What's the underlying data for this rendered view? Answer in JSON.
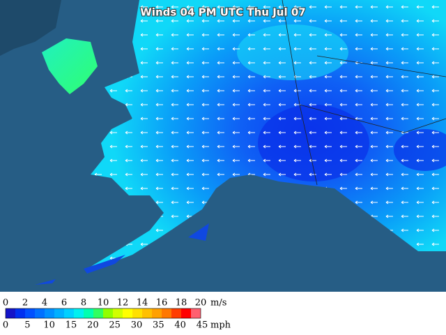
{
  "map": {
    "title": "Winds 04 PM UTC Thu Jul 07",
    "legend": {
      "ms_unit": "m/s",
      "ms_ticks": [
        0,
        2,
        4,
        6,
        8,
        10,
        12,
        14,
        16,
        18,
        20
      ],
      "ms_lim": [
        0,
        20
      ],
      "mph_unit": "mph",
      "mph_ticks": [
        0,
        5,
        10,
        15,
        20,
        25,
        30,
        35,
        40,
        45
      ],
      "mph_lim": [
        0,
        45
      ],
      "colors": [
        "#1414c8",
        "#0030f0",
        "#0050ff",
        "#0070ff",
        "#0090ff",
        "#00b0ff",
        "#00d0ff",
        "#00f0f0",
        "#00ffb0",
        "#30ff60",
        "#90ff00",
        "#d0ff00",
        "#ffff00",
        "#ffe000",
        "#ffc000",
        "#ffa000",
        "#ff7800",
        "#ff3c00",
        "#ff0000",
        "#ff6070"
      ]
    }
  }
}
